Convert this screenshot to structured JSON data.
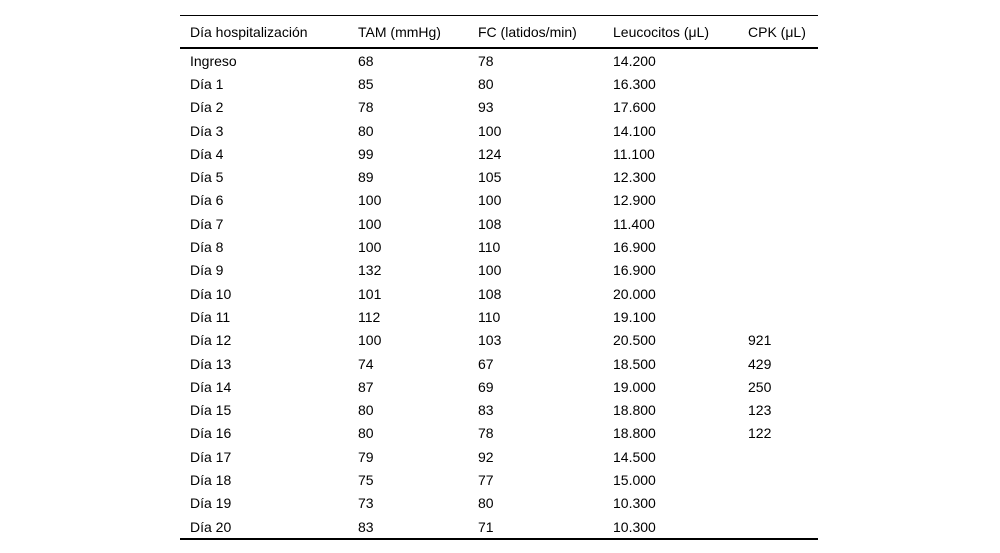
{
  "table": {
    "columns": [
      "Día hospitalización",
      "TAM (mmHg)",
      "FC (latidos/min)",
      "Leucocitos (μL)",
      "CPK (μL)"
    ],
    "rows": [
      [
        "Ingreso",
        "68",
        "78",
        "14.200",
        ""
      ],
      [
        "Día 1",
        "85",
        "80",
        "16.300",
        ""
      ],
      [
        "Día 2",
        "78",
        "93",
        "17.600",
        ""
      ],
      [
        "Día 3",
        "80",
        "100",
        "14.100",
        ""
      ],
      [
        "Día 4",
        "99",
        "124",
        "11.100",
        ""
      ],
      [
        "Día 5",
        "89",
        "105",
        "12.300",
        ""
      ],
      [
        "Día 6",
        "100",
        "100",
        "12.900",
        ""
      ],
      [
        "Día 7",
        "100",
        "108",
        "11.400",
        ""
      ],
      [
        "Día 8",
        "100",
        "110",
        "16.900",
        ""
      ],
      [
        "Día 9",
        "132",
        "100",
        "16.900",
        ""
      ],
      [
        "Día 10",
        "101",
        "108",
        "20.000",
        ""
      ],
      [
        "Día 11",
        "112",
        "110",
        "19.100",
        ""
      ],
      [
        "Día 12",
        "100",
        "103",
        "20.500",
        "921"
      ],
      [
        "Día 13",
        "74",
        "67",
        "18.500",
        "429"
      ],
      [
        "Día 14",
        "87",
        "69",
        "19.000",
        "250"
      ],
      [
        "Día 15",
        "80",
        "83",
        "18.800",
        "123"
      ],
      [
        "Día 16",
        "80",
        "78",
        "18.800",
        "122"
      ],
      [
        "Día 17",
        "79",
        "92",
        "14.500",
        ""
      ],
      [
        "Día 18",
        "75",
        "77",
        "15.000",
        ""
      ],
      [
        "Día 19",
        "73",
        "80",
        "10.300",
        ""
      ],
      [
        "Día 20",
        "83",
        "71",
        "10.300",
        ""
      ]
    ]
  },
  "chart_data": {
    "type": "table",
    "title": "",
    "columns": [
      "Día hospitalización",
      "TAM (mmHg)",
      "FC (latidos/min)",
      "Leucocitos (μL)",
      "CPK (μL)"
    ],
    "categories": [
      "Ingreso",
      "Día 1",
      "Día 2",
      "Día 3",
      "Día 4",
      "Día 5",
      "Día 6",
      "Día 7",
      "Día 8",
      "Día 9",
      "Día 10",
      "Día 11",
      "Día 12",
      "Día 13",
      "Día 14",
      "Día 15",
      "Día 16",
      "Día 17",
      "Día 18",
      "Día 19",
      "Día 20"
    ],
    "series": [
      {
        "name": "TAM (mmHg)",
        "values": [
          68,
          85,
          78,
          80,
          99,
          89,
          100,
          100,
          100,
          132,
          101,
          112,
          100,
          74,
          87,
          80,
          80,
          79,
          75,
          73,
          83
        ]
      },
      {
        "name": "FC (latidos/min)",
        "values": [
          78,
          80,
          93,
          100,
          124,
          105,
          100,
          108,
          110,
          100,
          108,
          110,
          103,
          67,
          69,
          83,
          78,
          92,
          77,
          80,
          71
        ]
      },
      {
        "name": "Leucocitos (μL)",
        "values": [
          14200,
          16300,
          17600,
          14100,
          11100,
          12300,
          12900,
          11400,
          16900,
          16900,
          20000,
          19100,
          20500,
          18500,
          19000,
          18800,
          18800,
          14500,
          15000,
          10300,
          10300
        ]
      },
      {
        "name": "CPK (μL)",
        "values": [
          null,
          null,
          null,
          null,
          null,
          null,
          null,
          null,
          null,
          null,
          null,
          null,
          921,
          429,
          250,
          123,
          122,
          null,
          null,
          null,
          null
        ]
      }
    ]
  },
  "colors": {
    "text": "#000000",
    "background": "#ffffff",
    "rule": "#000000"
  }
}
